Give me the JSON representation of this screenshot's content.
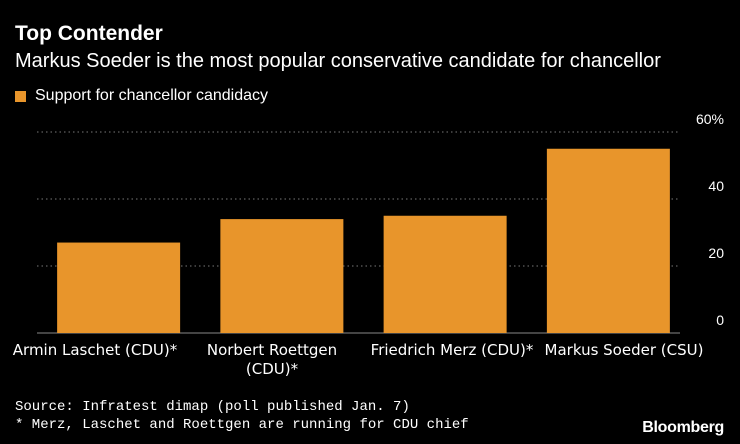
{
  "chart_data": {
    "type": "bar",
    "title": "Top Contender",
    "subtitle": "Markus Soeder is the most popular conservative candidate for chancellor",
    "categories": [
      [
        "Armin Laschet (CDU)*"
      ],
      [
        "Norbert Roettgen",
        "(CDU)*"
      ],
      [
        "Friedrich Merz (CDU)*"
      ],
      [
        "Markus Soeder (CSU)"
      ]
    ],
    "series": [
      {
        "name": "Support for chancellor candidacy",
        "values": [
          27,
          34,
          35,
          55
        ]
      }
    ],
    "ylim": [
      0,
      60
    ],
    "y_ticks": [
      "0",
      "20",
      "40",
      "60%"
    ],
    "y_tick_values": [
      0,
      20,
      40,
      60
    ],
    "y_axis_side": "right",
    "grid": "dotted horizontal",
    "legend_position": "top-left",
    "bar_color": "#e8952b"
  },
  "source": "Source: Infratest dimap (poll published Jan. 7)",
  "note": "* Merz, Laschet and Roettgen are running for CDU chief",
  "brand": "Bloomberg"
}
